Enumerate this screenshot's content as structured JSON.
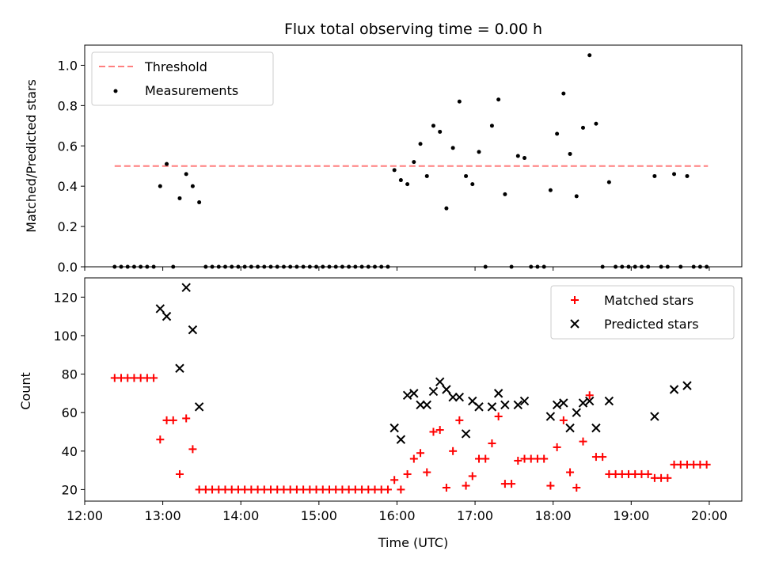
{
  "chart_data": [
    {
      "type": "scatter",
      "title": "Flux total observing time = 0.00 h",
      "xlabel": "",
      "ylabel": "Matched/Predicted stars",
      "xlim": [
        "12:00",
        "20:25"
      ],
      "ylim": [
        0,
        1.1
      ],
      "yticks": [
        "0.0",
        "0.2",
        "0.4",
        "0.6",
        "0.8",
        "1.0"
      ],
      "grid": false,
      "legend_position": "top-left",
      "threshold": {
        "name": "Threshold",
        "value": 0.5,
        "x_start": "12:23",
        "x_end": "19:59",
        "color": "#ff7f7f"
      },
      "series": [
        {
          "name": "Measurements",
          "color": "#000000",
          "points": [
            [
              "12:23",
              0
            ],
            [
              "12:28",
              0
            ],
            [
              "12:33",
              0
            ],
            [
              "12:38",
              0
            ],
            [
              "12:43",
              0
            ],
            [
              "12:48",
              0
            ],
            [
              "12:53",
              0
            ],
            [
              "12:58",
              0.4
            ],
            [
              "13:03",
              0.51
            ],
            [
              "13:08",
              0
            ],
            [
              "13:13",
              0.34
            ],
            [
              "13:18",
              0.46
            ],
            [
              "13:23",
              0.4
            ],
            [
              "13:28",
              0.32
            ],
            [
              "13:33",
              0
            ],
            [
              "13:38",
              0
            ],
            [
              "13:43",
              0
            ],
            [
              "13:48",
              0
            ],
            [
              "13:53",
              0
            ],
            [
              "13:58",
              0
            ],
            [
              "14:03",
              0
            ],
            [
              "14:08",
              0
            ],
            [
              "14:13",
              0
            ],
            [
              "14:18",
              0
            ],
            [
              "14:23",
              0
            ],
            [
              "14:28",
              0
            ],
            [
              "14:33",
              0
            ],
            [
              "14:38",
              0
            ],
            [
              "14:43",
              0
            ],
            [
              "14:48",
              0
            ],
            [
              "14:53",
              0
            ],
            [
              "14:58",
              0
            ],
            [
              "15:03",
              0
            ],
            [
              "15:08",
              0
            ],
            [
              "15:13",
              0
            ],
            [
              "15:18",
              0
            ],
            [
              "15:23",
              0
            ],
            [
              "15:28",
              0
            ],
            [
              "15:33",
              0
            ],
            [
              "15:38",
              0
            ],
            [
              "15:43",
              0
            ],
            [
              "15:48",
              0
            ],
            [
              "15:53",
              0
            ],
            [
              "15:58",
              0.48
            ],
            [
              "16:03",
              0.43
            ],
            [
              "16:08",
              0.41
            ],
            [
              "16:13",
              0.52
            ],
            [
              "16:18",
              0.61
            ],
            [
              "16:23",
              0.45
            ],
            [
              "16:28",
              0.7
            ],
            [
              "16:33",
              0.67
            ],
            [
              "16:38",
              0.29
            ],
            [
              "16:43",
              0.59
            ],
            [
              "16:48",
              0.82
            ],
            [
              "16:53",
              0.45
            ],
            [
              "16:58",
              0.41
            ],
            [
              "17:03",
              0.57
            ],
            [
              "17:08",
              0
            ],
            [
              "17:13",
              0.7
            ],
            [
              "17:18",
              0.83
            ],
            [
              "17:23",
              0.36
            ],
            [
              "17:28",
              0
            ],
            [
              "17:33",
              0.55
            ],
            [
              "17:38",
              0.54
            ],
            [
              "17:43",
              0
            ],
            [
              "17:48",
              0
            ],
            [
              "17:53",
              0
            ],
            [
              "17:58",
              0.38
            ],
            [
              "18:03",
              0.66
            ],
            [
              "18:08",
              0.86
            ],
            [
              "18:13",
              0.56
            ],
            [
              "18:18",
              0.35
            ],
            [
              "18:23",
              0.69
            ],
            [
              "18:28",
              1.05
            ],
            [
              "18:33",
              0.71
            ],
            [
              "18:38",
              0
            ],
            [
              "18:43",
              0.42
            ],
            [
              "18:48",
              0
            ],
            [
              "18:53",
              0
            ],
            [
              "18:58",
              0
            ],
            [
              "19:03",
              0
            ],
            [
              "19:08",
              0
            ],
            [
              "19:13",
              0
            ],
            [
              "19:18",
              0.45
            ],
            [
              "19:23",
              0
            ],
            [
              "19:28",
              0
            ],
            [
              "19:33",
              0.46
            ],
            [
              "19:38",
              0
            ],
            [
              "19:43",
              0.45
            ],
            [
              "19:48",
              0
            ],
            [
              "19:53",
              0
            ],
            [
              "19:58",
              0
            ]
          ]
        }
      ]
    },
    {
      "type": "scatter",
      "title": "",
      "xlabel": "Time (UTC)",
      "ylabel": "Count",
      "xlim": [
        "12:00",
        "20:25"
      ],
      "ylim": [
        14,
        130
      ],
      "xticks": [
        "12:00",
        "13:00",
        "14:00",
        "15:00",
        "16:00",
        "17:00",
        "18:00",
        "19:00",
        "20:00"
      ],
      "yticks": [
        "20",
        "40",
        "60",
        "80",
        "100",
        "120"
      ],
      "grid": false,
      "legend_position": "top-right",
      "series": [
        {
          "name": "Matched stars",
          "marker": "plus",
          "color": "#ff0000",
          "points": [
            [
              "12:23",
              78
            ],
            [
              "12:28",
              78
            ],
            [
              "12:33",
              78
            ],
            [
              "12:38",
              78
            ],
            [
              "12:43",
              78
            ],
            [
              "12:48",
              78
            ],
            [
              "12:53",
              78
            ],
            [
              "12:58",
              46
            ],
            [
              "13:03",
              56
            ],
            [
              "13:08",
              56
            ],
            [
              "13:13",
              28
            ],
            [
              "13:18",
              57
            ],
            [
              "13:23",
              41
            ],
            [
              "13:28",
              20
            ],
            [
              "13:33",
              20
            ],
            [
              "13:38",
              20
            ],
            [
              "13:43",
              20
            ],
            [
              "13:48",
              20
            ],
            [
              "13:53",
              20
            ],
            [
              "13:58",
              20
            ],
            [
              "14:03",
              20
            ],
            [
              "14:08",
              20
            ],
            [
              "14:13",
              20
            ],
            [
              "14:18",
              20
            ],
            [
              "14:23",
              20
            ],
            [
              "14:28",
              20
            ],
            [
              "14:33",
              20
            ],
            [
              "14:38",
              20
            ],
            [
              "14:43",
              20
            ],
            [
              "14:48",
              20
            ],
            [
              "14:53",
              20
            ],
            [
              "14:58",
              20
            ],
            [
              "15:03",
              20
            ],
            [
              "15:08",
              20
            ],
            [
              "15:13",
              20
            ],
            [
              "15:18",
              20
            ],
            [
              "15:23",
              20
            ],
            [
              "15:28",
              20
            ],
            [
              "15:33",
              20
            ],
            [
              "15:38",
              20
            ],
            [
              "15:43",
              20
            ],
            [
              "15:48",
              20
            ],
            [
              "15:53",
              20
            ],
            [
              "15:58",
              25
            ],
            [
              "16:03",
              20
            ],
            [
              "16:08",
              28
            ],
            [
              "16:13",
              36
            ],
            [
              "16:18",
              39
            ],
            [
              "16:23",
              29
            ],
            [
              "16:28",
              50
            ],
            [
              "16:33",
              51
            ],
            [
              "16:38",
              21
            ],
            [
              "16:43",
              40
            ],
            [
              "16:48",
              56
            ],
            [
              "16:53",
              22
            ],
            [
              "16:58",
              27
            ],
            [
              "17:03",
              36
            ],
            [
              "17:08",
              36
            ],
            [
              "17:13",
              44
            ],
            [
              "17:18",
              58
            ],
            [
              "17:23",
              23
            ],
            [
              "17:28",
              23
            ],
            [
              "17:33",
              35
            ],
            [
              "17:38",
              36
            ],
            [
              "17:43",
              36
            ],
            [
              "17:48",
              36
            ],
            [
              "17:53",
              36
            ],
            [
              "17:58",
              22
            ],
            [
              "18:03",
              42
            ],
            [
              "18:08",
              56
            ],
            [
              "18:13",
              29
            ],
            [
              "18:18",
              21
            ],
            [
              "18:23",
              45
            ],
            [
              "18:28",
              69
            ],
            [
              "18:33",
              37
            ],
            [
              "18:38",
              37
            ],
            [
              "18:43",
              28
            ],
            [
              "18:48",
              28
            ],
            [
              "18:53",
              28
            ],
            [
              "18:58",
              28
            ],
            [
              "19:03",
              28
            ],
            [
              "19:08",
              28
            ],
            [
              "19:13",
              28
            ],
            [
              "19:18",
              26
            ],
            [
              "19:23",
              26
            ],
            [
              "19:28",
              26
            ],
            [
              "19:33",
              33
            ],
            [
              "19:38",
              33
            ],
            [
              "19:43",
              33
            ],
            [
              "19:48",
              33
            ],
            [
              "19:53",
              33
            ],
            [
              "19:58",
              33
            ]
          ]
        },
        {
          "name": "Predicted stars",
          "marker": "x",
          "color": "#000000",
          "points": [
            [
              "12:58",
              114
            ],
            [
              "13:03",
              110
            ],
            [
              "13:13",
              83
            ],
            [
              "13:18",
              125
            ],
            [
              "13:23",
              103
            ],
            [
              "13:28",
              63
            ],
            [
              "15:58",
              52
            ],
            [
              "16:03",
              46
            ],
            [
              "16:08",
              69
            ],
            [
              "16:13",
              70
            ],
            [
              "16:18",
              64
            ],
            [
              "16:23",
              64
            ],
            [
              "16:28",
              71
            ],
            [
              "16:33",
              76
            ],
            [
              "16:38",
              72
            ],
            [
              "16:43",
              68
            ],
            [
              "16:48",
              68
            ],
            [
              "16:53",
              49
            ],
            [
              "16:58",
              66
            ],
            [
              "17:03",
              63
            ],
            [
              "17:13",
              63
            ],
            [
              "17:18",
              70
            ],
            [
              "17:23",
              64
            ],
            [
              "17:33",
              64
            ],
            [
              "17:38",
              66
            ],
            [
              "17:58",
              58
            ],
            [
              "18:03",
              64
            ],
            [
              "18:08",
              65
            ],
            [
              "18:13",
              52
            ],
            [
              "18:18",
              60
            ],
            [
              "18:23",
              65
            ],
            [
              "18:28",
              66
            ],
            [
              "18:33",
              52
            ],
            [
              "18:43",
              66
            ],
            [
              "19:18",
              58
            ],
            [
              "19:33",
              72
            ],
            [
              "19:43",
              74
            ]
          ]
        }
      ]
    }
  ]
}
